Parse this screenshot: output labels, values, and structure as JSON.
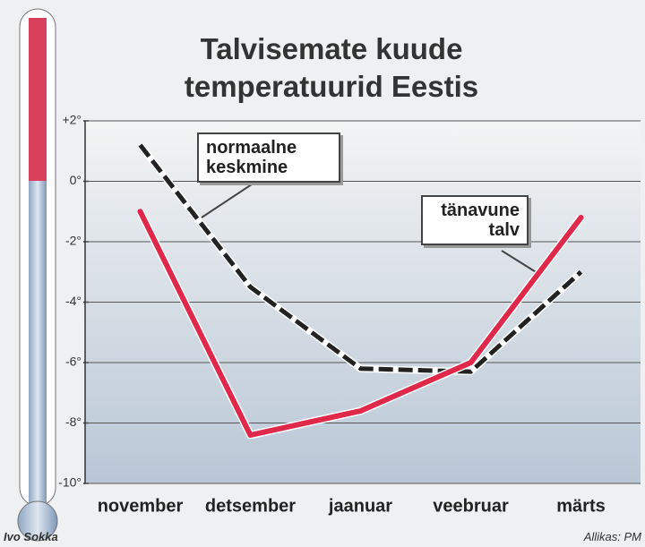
{
  "chart_data": {
    "type": "line",
    "title": "Talvisemate kuude temperatuurid Eestis",
    "categories": [
      "november",
      "detsember",
      "jaanuar",
      "veebruar",
      "märts"
    ],
    "series": [
      {
        "name": "normaalne keskmine",
        "color": "#222222",
        "dashed": true,
        "values": [
          1.2,
          -3.5,
          -6.2,
          -6.3,
          -3.0
        ]
      },
      {
        "name": "tänavune talv",
        "color": "#e0284a",
        "dashed": false,
        "values": [
          -1.0,
          -8.4,
          -7.6,
          -6.0,
          -1.2
        ]
      }
    ],
    "ylim": [
      -10,
      2
    ],
    "yticks": [
      {
        "value": -10,
        "label": "-10°"
      },
      {
        "value": -8,
        "label": "-8°"
      },
      {
        "value": -6,
        "label": "-6°"
      },
      {
        "value": -4,
        "label": "-4°"
      },
      {
        "value": -2,
        "label": "-2°"
      },
      {
        "value": 0,
        "label": "0°"
      },
      {
        "value": 2,
        "label": "+2°"
      }
    ],
    "grid": true,
    "author": "Ivo Sokka",
    "source": "Allikas: PM"
  }
}
